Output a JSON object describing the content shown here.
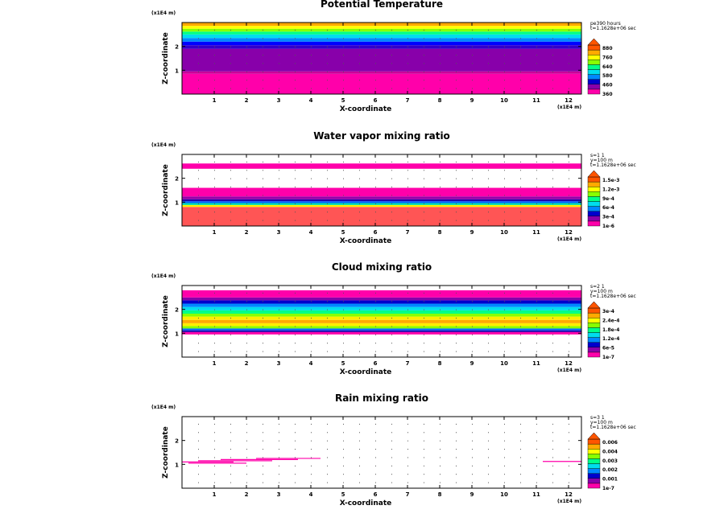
{
  "chart_data": [
    {
      "type": "heatmap",
      "title": "Potential Temperature",
      "xlabel": "X-coordinate",
      "ylabel": "Z-coordinate",
      "x_scale_note": "(x1E4 m)",
      "z_scale_note": "(x1E4 m)",
      "xlim": [
        0,
        12.4
      ],
      "ylim": [
        0,
        3.0
      ],
      "x_ticks": [
        "1",
        "2",
        "3",
        "4",
        "5",
        "6",
        "7",
        "8",
        "9",
        "10",
        "11",
        "12"
      ],
      "y_ticks": [
        "1",
        "2"
      ],
      "info_lines": [
        "pe390 hours",
        "t=1.1628e+06 sec"
      ],
      "colorbar_labels": [
        "880",
        "760",
        "640",
        "580",
        "460",
        "360"
      ],
      "layers": [
        {
          "z_bottom": 0.0,
          "z_top": 0.85,
          "color": "#ff00aa"
        },
        {
          "z_bottom": 0.85,
          "z_top": 0.95,
          "color": "#cc0099"
        },
        {
          "z_bottom": 0.95,
          "z_top": 1.9,
          "color": "#8800aa"
        },
        {
          "z_bottom": 1.9,
          "z_top": 2.05,
          "color": "#3300cc"
        },
        {
          "z_bottom": 2.05,
          "z_top": 2.2,
          "color": "#0000ff"
        },
        {
          "z_bottom": 2.2,
          "z_top": 2.35,
          "color": "#0088ff"
        },
        {
          "z_bottom": 2.35,
          "z_top": 2.5,
          "color": "#00ddee"
        },
        {
          "z_bottom": 2.5,
          "z_top": 2.62,
          "color": "#00ff88"
        },
        {
          "z_bottom": 2.62,
          "z_top": 2.74,
          "color": "#88ff00"
        },
        {
          "z_bottom": 2.74,
          "z_top": 2.86,
          "color": "#ffff00"
        },
        {
          "z_bottom": 2.86,
          "z_top": 3.0,
          "color": "#ffaa00"
        }
      ],
      "colorbar_colors": [
        "#ff00aa",
        "#8800aa",
        "#0000cc",
        "#0088ff",
        "#00ddee",
        "#00ff88",
        "#88ff00",
        "#ffff00",
        "#ffaa00",
        "#ff5500"
      ]
    },
    {
      "type": "heatmap",
      "title": "Water vapor mixing ratio",
      "xlabel": "X-coordinate",
      "ylabel": "Z-coordinate",
      "x_scale_note": "(x1E4 m)",
      "z_scale_note": "(x1E4 m)",
      "xlim": [
        0,
        12.4
      ],
      "ylim": [
        0,
        3.0
      ],
      "x_ticks": [
        "1",
        "2",
        "3",
        "4",
        "5",
        "6",
        "7",
        "8",
        "9",
        "10",
        "11",
        "12"
      ],
      "y_ticks": [
        "1",
        "2"
      ],
      "info_lines": [
        "s=1 1",
        "y=100 m",
        "t=1.1628e+06 sec"
      ],
      "colorbar_labels": [
        "1.5e-3",
        "1.2e-3",
        "9e-4",
        "6e-4",
        "3e-4",
        "1e-6"
      ],
      "layers": [
        {
          "z_bottom": 0.0,
          "z_top": 0.8,
          "color": "#ff5555"
        },
        {
          "z_bottom": 0.8,
          "z_top": 0.88,
          "color": "#ffee00"
        },
        {
          "z_bottom": 0.88,
          "z_top": 0.96,
          "color": "#00ddaa"
        },
        {
          "z_bottom": 0.96,
          "z_top": 1.04,
          "color": "#0066ff"
        },
        {
          "z_bottom": 1.04,
          "z_top": 1.12,
          "color": "#2200aa"
        },
        {
          "z_bottom": 1.12,
          "z_top": 1.24,
          "color": "#9900aa"
        },
        {
          "z_bottom": 1.24,
          "z_top": 1.6,
          "color": "#ff00aa"
        },
        {
          "z_bottom": 2.4,
          "z_top": 2.62,
          "color": "#ff00aa"
        }
      ],
      "colorbar_colors": [
        "#ff00aa",
        "#8800aa",
        "#0000cc",
        "#0088ff",
        "#00ddee",
        "#00ff88",
        "#88ff00",
        "#ffff00",
        "#ffaa00",
        "#ff5500"
      ]
    },
    {
      "type": "heatmap",
      "title": "Cloud mixing ratio",
      "xlabel": "X-coordinate",
      "ylabel": "Z-coordinate",
      "x_scale_note": "(x1E4 m)",
      "z_scale_note": "(x1E4 m)",
      "xlim": [
        0,
        12.4
      ],
      "ylim": [
        0,
        3.0
      ],
      "x_ticks": [
        "1",
        "2",
        "3",
        "4",
        "5",
        "6",
        "7",
        "8",
        "9",
        "10",
        "11",
        "12"
      ],
      "y_ticks": [
        "1",
        "2"
      ],
      "info_lines": [
        "s=2 1",
        "y=100 m",
        "t=1.1628e+06 sec"
      ],
      "colorbar_labels": [
        "3e-4",
        "2.4e-4",
        "1.8e-4",
        "1.2e-4",
        "6e-5",
        "1e-7"
      ],
      "layers": [
        {
          "z_bottom": 0.95,
          "z_top": 1.05,
          "color": "#ff00aa"
        },
        {
          "z_bottom": 1.05,
          "z_top": 1.12,
          "color": "#2200aa"
        },
        {
          "z_bottom": 1.12,
          "z_top": 1.2,
          "color": "#0066ff"
        },
        {
          "z_bottom": 1.2,
          "z_top": 1.3,
          "color": "#88ff00"
        },
        {
          "z_bottom": 1.3,
          "z_top": 1.42,
          "color": "#ffee00"
        },
        {
          "z_bottom": 1.42,
          "z_top": 1.56,
          "color": "#ffaa00"
        },
        {
          "z_bottom": 1.56,
          "z_top": 1.7,
          "color": "#ffee00"
        },
        {
          "z_bottom": 1.7,
          "z_top": 1.82,
          "color": "#88ff00"
        },
        {
          "z_bottom": 1.82,
          "z_top": 1.96,
          "color": "#00ff88"
        },
        {
          "z_bottom": 1.96,
          "z_top": 2.1,
          "color": "#00ddee"
        },
        {
          "z_bottom": 2.1,
          "z_top": 2.24,
          "color": "#0088ff"
        },
        {
          "z_bottom": 2.24,
          "z_top": 2.38,
          "color": "#0000cc"
        },
        {
          "z_bottom": 2.38,
          "z_top": 2.5,
          "color": "#8800aa"
        },
        {
          "z_bottom": 2.5,
          "z_top": 2.8,
          "color": "#ff00aa"
        }
      ],
      "colorbar_colors": [
        "#ff00aa",
        "#8800aa",
        "#0000cc",
        "#0088ff",
        "#00ddee",
        "#00ff88",
        "#88ff00",
        "#ffff00",
        "#ffaa00",
        "#ff5500"
      ]
    },
    {
      "type": "heatmap",
      "title": "Rain mixing ratio",
      "xlabel": "X-coordinate",
      "ylabel": "Z-coordinate",
      "x_scale_note": "(x1E4 m)",
      "z_scale_note": "(x1E4 m)",
      "xlim": [
        0,
        12.4
      ],
      "ylim": [
        0,
        3.0
      ],
      "x_ticks": [
        "1",
        "2",
        "3",
        "4",
        "5",
        "6",
        "7",
        "8",
        "9",
        "10",
        "11",
        "12"
      ],
      "y_ticks": [
        "1",
        "2"
      ],
      "info_lines": [
        "s=3 1",
        "y=100 m",
        "t=1.1628e+06 sec"
      ],
      "colorbar_labels": [
        "0.006",
        "0.004",
        "0.003",
        "0.002",
        "0.001",
        "1e-7"
      ],
      "streaks": [
        {
          "x0": 0.0,
          "x1": 1.6,
          "z": 1.1,
          "color": "#ff00aa"
        },
        {
          "x0": 0.5,
          "x1": 2.8,
          "z": 1.15,
          "color": "#ff00aa"
        },
        {
          "x0": 1.2,
          "x1": 3.6,
          "z": 1.2,
          "color": "#ff00aa"
        },
        {
          "x0": 2.3,
          "x1": 4.3,
          "z": 1.25,
          "color": "#ff00aa"
        },
        {
          "x0": 0.2,
          "x1": 2.0,
          "z": 1.05,
          "color": "#ff00aa"
        },
        {
          "x0": 11.2,
          "x1": 12.4,
          "z": 1.12,
          "color": "#ff00aa"
        }
      ],
      "colorbar_colors": [
        "#ff00aa",
        "#8800aa",
        "#0000cc",
        "#0088ff",
        "#00ddee",
        "#00ff88",
        "#88ff00",
        "#ffff00",
        "#ffaa00",
        "#ff5500"
      ]
    }
  ]
}
